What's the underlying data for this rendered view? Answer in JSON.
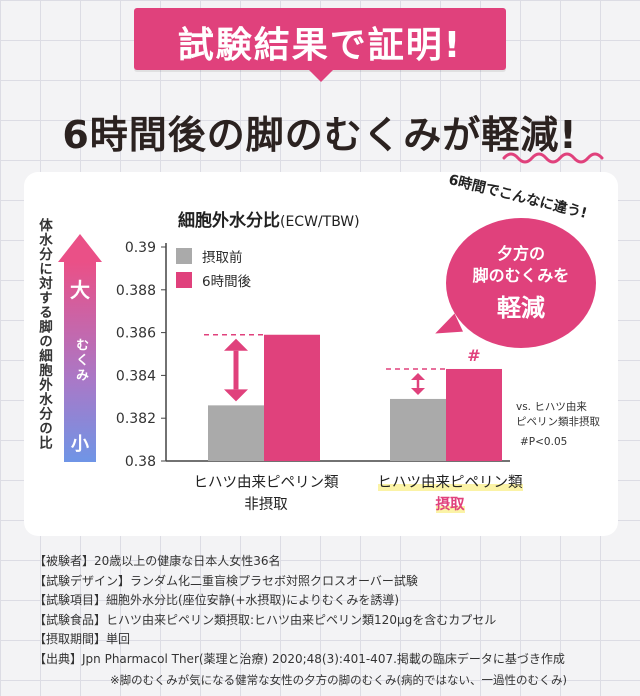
{
  "banner": {
    "text": "試験結果で証明!"
  },
  "headline": {
    "text": "6時間後の脚のむくみが軽減!"
  },
  "left_axis": {
    "label": "体水分に対する脚の細胞外水分の比",
    "arrow_top": "大",
    "arrow_mid": "むくみ",
    "arrow_bottom": "小"
  },
  "colors": {
    "before": "#aaaaaa",
    "after": "#e0417c",
    "accent": "#e0417c"
  },
  "chart_data": {
    "type": "bar",
    "title": "細胞外水分比",
    "title_sub": "(ECW/TBW)",
    "ylim": [
      0.38,
      0.39
    ],
    "yticks": [
      "0.39",
      "0.388",
      "0.386",
      "0.384",
      "0.382",
      "0.38"
    ],
    "categories": [
      {
        "line1": "ヒハツ由来ピペリン類",
        "line2": "非摂取"
      },
      {
        "line1": "ヒハツ由来ピペリン類",
        "line2": "摂取"
      }
    ],
    "series": [
      {
        "name": "摂取前",
        "values": [
          0.3826,
          0.3829
        ]
      },
      {
        "name": "6時間後",
        "values": [
          0.3859,
          0.3843
        ]
      }
    ],
    "significance_mark": "#",
    "legend_position": "top-left"
  },
  "callout": {
    "arc_text": "6時間でこんなに違う!",
    "line1": "夕方の",
    "line2": "脚のむくみを",
    "line3": "軽減"
  },
  "note": {
    "line1": "vs. ヒハツ由来",
    "line2": "ピペリン類非摂取",
    "line3": "#P<0.05"
  },
  "info": [
    "【被験者】20歳以上の健康な日本人女性36名",
    "【試験デザイン】ランダム化二重盲検プラセボ対照クロスオーバー試験",
    "【試験項目】細胞外水分比(座位安静(+水摂取)によりむくみを誘導)",
    "【試験食品】ヒハツ由来ピペリン類摂取:ヒハツ由来ピペリン類120μgを含むカプセル",
    "【摂取期間】単回",
    "【出典】Jpn Pharmacol Ther(薬理と治療) 2020;48(3):401-407.掲載の臨床データに基づき作成"
  ],
  "footnote": "※脚のむくみが気になる健常な女性の夕方の脚のむくみ(病的ではない、一過性のむくみ)"
}
